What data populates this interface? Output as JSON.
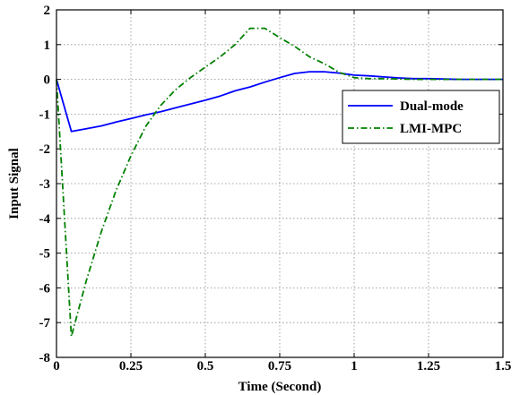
{
  "chart_data": {
    "type": "line",
    "xlabel": "Time (Second)",
    "ylabel": "Input Signal",
    "xlim": [
      0,
      1.5
    ],
    "ylim": [
      -8,
      2
    ],
    "x_ticks": [
      0,
      0.25,
      0.5,
      0.75,
      1,
      1.25,
      1.5
    ],
    "x_tick_labels": [
      "0",
      "0.25",
      "0.5",
      "0.75",
      "1",
      "1.25",
      "1.5"
    ],
    "y_ticks": [
      2,
      1,
      0,
      -1,
      -2,
      -3,
      -4,
      -5,
      -6,
      -7,
      -8
    ],
    "y_tick_labels": [
      "2",
      "1",
      "0",
      "-1",
      "-2",
      "-3",
      "-4",
      "-5",
      "-6",
      "-7",
      "-8"
    ],
    "grid": true,
    "legend_position": "top-right",
    "series": [
      {
        "name": "Dual-mode",
        "color": "#0000ff",
        "line_style": "solid",
        "x": [
          0,
          0.05,
          0.1,
          0.15,
          0.2,
          0.25,
          0.3,
          0.35,
          0.4,
          0.45,
          0.5,
          0.55,
          0.6,
          0.65,
          0.7,
          0.75,
          0.8,
          0.85,
          0.9,
          0.95,
          1.0,
          1.05,
          1.1,
          1.15,
          1.2,
          1.25,
          1.3,
          1.35,
          1.4,
          1.45,
          1.5
        ],
        "y": [
          0,
          -1.5,
          -1.42,
          -1.34,
          -1.23,
          -1.13,
          -1.02,
          -0.93,
          -0.82,
          -0.71,
          -0.6,
          -0.48,
          -0.33,
          -0.22,
          -0.08,
          0.05,
          0.17,
          0.22,
          0.22,
          0.18,
          0.12,
          0.1,
          0.07,
          0.04,
          0.02,
          0.02,
          0.01,
          0.0,
          0.0,
          0.0,
          0.0
        ]
      },
      {
        "name": "LMI-MPC",
        "color": "#008000",
        "line_style": "dash-dot",
        "x": [
          0,
          0.05,
          0.1,
          0.15,
          0.2,
          0.25,
          0.3,
          0.35,
          0.4,
          0.45,
          0.5,
          0.55,
          0.6,
          0.65,
          0.7,
          0.75,
          0.8,
          0.85,
          0.9,
          0.95,
          1.0,
          1.05,
          1.1,
          1.15,
          1.2,
          1.25,
          1.3,
          1.35,
          1.4,
          1.45,
          1.5
        ],
        "y": [
          0,
          -7.4,
          -5.8,
          -4.4,
          -3.2,
          -2.2,
          -1.35,
          -0.75,
          -0.3,
          0.05,
          0.35,
          0.65,
          1.0,
          1.47,
          1.47,
          1.2,
          0.95,
          0.65,
          0.45,
          0.2,
          0.05,
          0.02,
          0.02,
          0.01,
          0.0,
          0.0,
          0.0,
          0.0,
          0.0,
          0.0,
          0.0
        ]
      }
    ]
  }
}
